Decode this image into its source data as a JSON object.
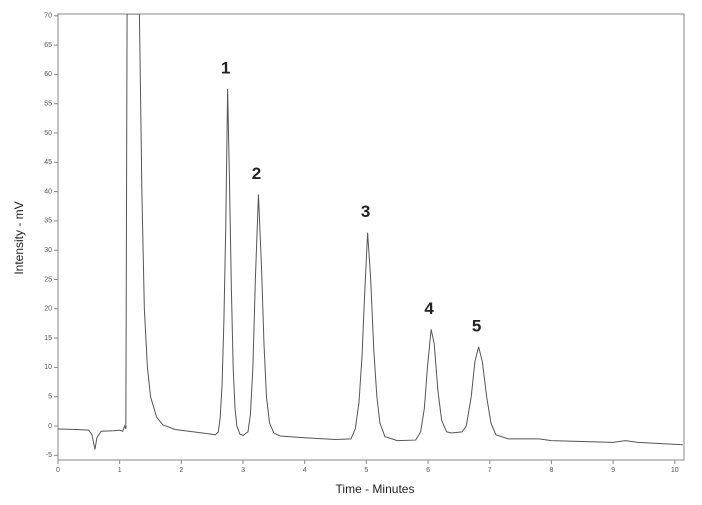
{
  "chart_data": {
    "type": "line",
    "xlabel": "Time - Minutes",
    "ylabel": "Intensity - mV",
    "xlim": [
      0,
      10.15
    ],
    "ylim": [
      -5.8,
      70.3
    ],
    "xticks": [
      0,
      1,
      2,
      3,
      4,
      5,
      6,
      7,
      8,
      9,
      10
    ],
    "yticks": [
      -5,
      0,
      5,
      10,
      15,
      20,
      25,
      30,
      35,
      40,
      45,
      50,
      55,
      60,
      65,
      70
    ],
    "color": "#555555",
    "x": [
      0,
      0.3,
      0.5,
      0.55,
      0.6,
      0.63,
      0.7,
      0.9,
      1.0,
      1.05,
      1.08,
      1.1,
      1.12,
      1.32,
      1.36,
      1.4,
      1.45,
      1.5,
      1.6,
      1.7,
      1.9,
      2.2,
      2.5,
      2.55,
      2.6,
      2.63,
      2.66,
      2.69,
      2.72,
      2.75,
      2.78,
      2.81,
      2.84,
      2.87,
      2.9,
      2.95,
      3.0,
      3.08,
      3.12,
      3.16,
      3.2,
      3.25,
      3.3,
      3.34,
      3.38,
      3.43,
      3.5,
      3.6,
      4.0,
      4.5,
      4.75,
      4.82,
      4.88,
      4.93,
      4.97,
      5.02,
      5.07,
      5.12,
      5.17,
      5.22,
      5.3,
      5.5,
      5.8,
      5.88,
      5.94,
      5.99,
      6.05,
      6.1,
      6.16,
      6.22,
      6.3,
      6.38,
      6.55,
      6.62,
      6.7,
      6.76,
      6.82,
      6.88,
      6.95,
      7.02,
      7.1,
      7.3,
      7.8,
      8.0,
      9.0,
      9.2,
      9.4,
      10.13
    ],
    "values": [
      -0.5,
      -0.6,
      -0.7,
      -1.5,
      -4.0,
      -2.0,
      -0.9,
      -0.8,
      -0.7,
      -0.9,
      0,
      -0.5,
      70.3,
      70.3,
      40,
      20,
      10,
      5,
      1.5,
      0.2,
      -0.6,
      -1.0,
      -1.4,
      -1.5,
      -1.0,
      1.5,
      7,
      18,
      34,
      57.5,
      42,
      24,
      10,
      3,
      0,
      -1.4,
      -1.6,
      -1.0,
      2,
      10,
      25,
      39.5,
      27,
      14,
      5,
      0.5,
      -1.2,
      -1.7,
      -2.0,
      -2.3,
      -2.2,
      -0.5,
      4,
      12,
      22,
      33,
      25,
      13,
      5,
      0.5,
      -1.8,
      -2.5,
      -2.4,
      -1.0,
      3,
      10,
      16.5,
      14,
      6,
      1,
      -1,
      -1.2,
      -1.0,
      0,
      5,
      11,
      13.5,
      11,
      5,
      0.5,
      -1.5,
      -2.2,
      -2.2,
      -2.5,
      -2.8,
      -2.5,
      -2.8,
      -3.2
    ],
    "annotations": [
      {
        "text": "1",
        "x": 2.75,
        "y": 57.5
      },
      {
        "text": "2",
        "x": 3.25,
        "y": 39.5
      },
      {
        "text": "3",
        "x": 5.02,
        "y": 33
      },
      {
        "text": "4",
        "x": 6.05,
        "y": 16.5
      },
      {
        "text": "5",
        "x": 6.82,
        "y": 13.5
      }
    ]
  }
}
